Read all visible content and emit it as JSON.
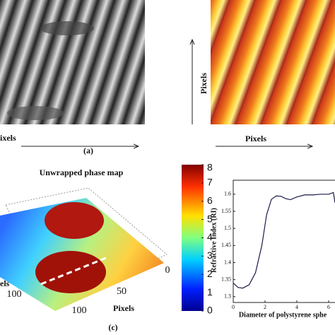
{
  "panels": {
    "a_label": "(a)",
    "c_label": "(c)",
    "top_left_x_label": "ixels",
    "top_right_x_label": "Pixels",
    "top_right_y_label": "Pixels"
  },
  "phase_map": {
    "title": "Unwrapped phase map",
    "x_label": "Pixels",
    "y_label": "els",
    "x_ticks": [
      0,
      50,
      100
    ],
    "y_ticks": [
      100
    ],
    "colorbar_lim": [
      0,
      8
    ],
    "colorbar_ticks": [
      0,
      1,
      2,
      3,
      4,
      5,
      6,
      7,
      8
    ]
  },
  "chart_data": {
    "type": "line",
    "x_label": "Diameter of polystyrene sphe",
    "y_label": "Refractive Index (RI)",
    "x": [
      0,
      0.3,
      0.6,
      1.0,
      1.4,
      1.8,
      2.1,
      2.4,
      2.7,
      3.0,
      3.3,
      3.6,
      4.0,
      4.5,
      5.0,
      5.5,
      6.0,
      6.3,
      6.4
    ],
    "series": [
      {
        "color": "#1a1a4a",
        "values": [
          1.34,
          1.327,
          1.325,
          1.335,
          1.37,
          1.45,
          1.54,
          1.585,
          1.595,
          1.594,
          1.587,
          1.584,
          1.592,
          1.598,
          1.598,
          1.6,
          1.6,
          1.605,
          1.575
        ]
      }
    ],
    "xlim": [
      0,
      6.4
    ],
    "ylim": [
      1.283,
      1.641
    ],
    "xticks": [
      0,
      2,
      4,
      6
    ],
    "yticks": [
      1.3,
      1.35,
      1.4,
      1.45,
      1.5,
      1.55,
      1.6
    ]
  }
}
